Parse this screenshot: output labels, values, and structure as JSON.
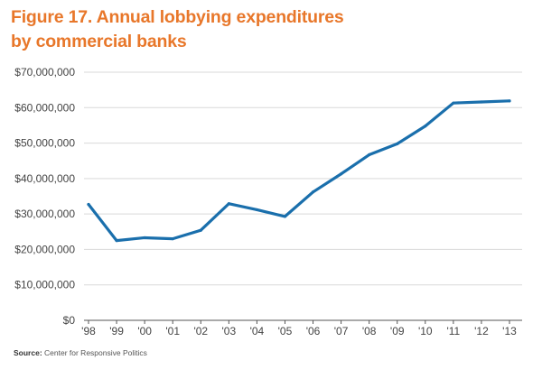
{
  "title_line1": "Figure 17. Annual lobbying expenditures",
  "title_line2": "by commercial banks",
  "source_label": "Source:",
  "source_text": "Center for Responsive Politics",
  "colors": {
    "title": "#e8772a",
    "line": "#1a6fac",
    "grid": "#d9d9d9",
    "axis": "#555555"
  },
  "chart_data": {
    "type": "line",
    "title": "Figure 17. Annual lobbying expenditures by commercial banks",
    "categories": [
      "'98",
      "'99",
      "'00",
      "'01",
      "'02",
      "'03",
      "'04",
      "'05",
      "'06",
      "'07",
      "'08",
      "'09",
      "'10",
      "'11",
      "'12",
      "'13"
    ],
    "series": [
      {
        "values": [
          32700000,
          22500000,
          23300000,
          23000000,
          25400000,
          32900000,
          31200000,
          29300000,
          36200000,
          41300000,
          46700000,
          49800000,
          54800000,
          61300000,
          61600000,
          61900000
        ]
      }
    ],
    "y_ticks": [
      "$0",
      "$10,000,000",
      "$20,000,000",
      "$30,000,000",
      "$40,000,000",
      "$50,000,000",
      "$60,000,000",
      "$70,000,000"
    ],
    "ylim": [
      0,
      70000000
    ],
    "grid": true,
    "legend": "none",
    "xlabel": "",
    "ylabel": ""
  }
}
